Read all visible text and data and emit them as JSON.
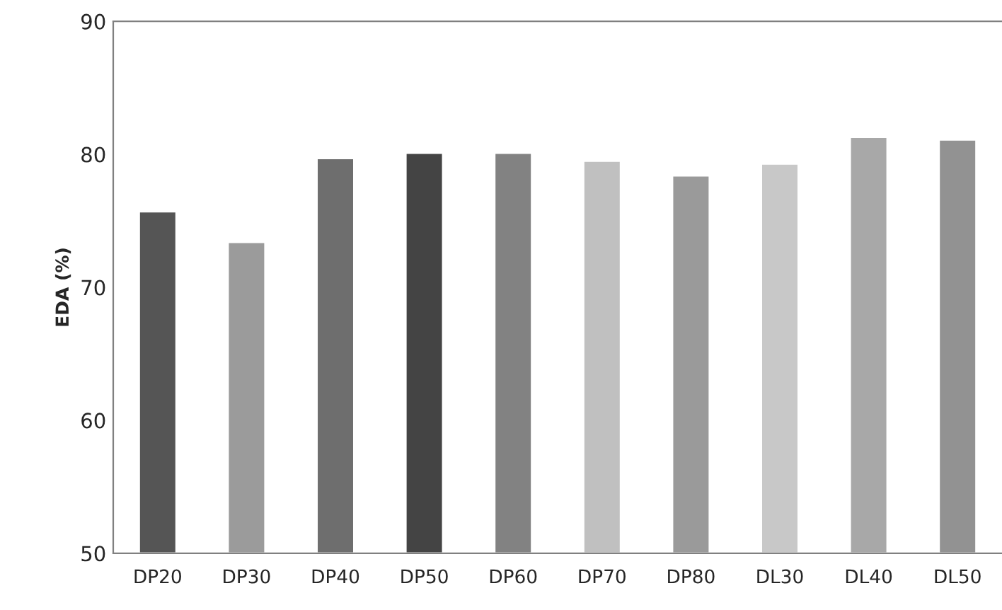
{
  "chart_data": {
    "type": "bar",
    "ylabel": "EDA (%)",
    "categories": [
      "DP20",
      "DP30",
      "DP40",
      "DP50",
      "DP60",
      "DP70",
      "DP80",
      "DL30",
      "DL40",
      "DL50"
    ],
    "values": [
      75.7,
      73.4,
      79.7,
      80.1,
      80.1,
      79.5,
      78.4,
      79.3,
      81.3,
      81.1
    ],
    "colors": [
      "#555555",
      "#9b9b9b",
      "#6e6e6e",
      "#444444",
      "#828282",
      "#c0c0c0",
      "#9a9a9a",
      "#c8c8c8",
      "#a8a8a8",
      "#929292"
    ],
    "ylim": [
      50,
      90
    ],
    "yticks": [
      50,
      60,
      70,
      80,
      90
    ],
    "grid": false,
    "legend": false
  }
}
